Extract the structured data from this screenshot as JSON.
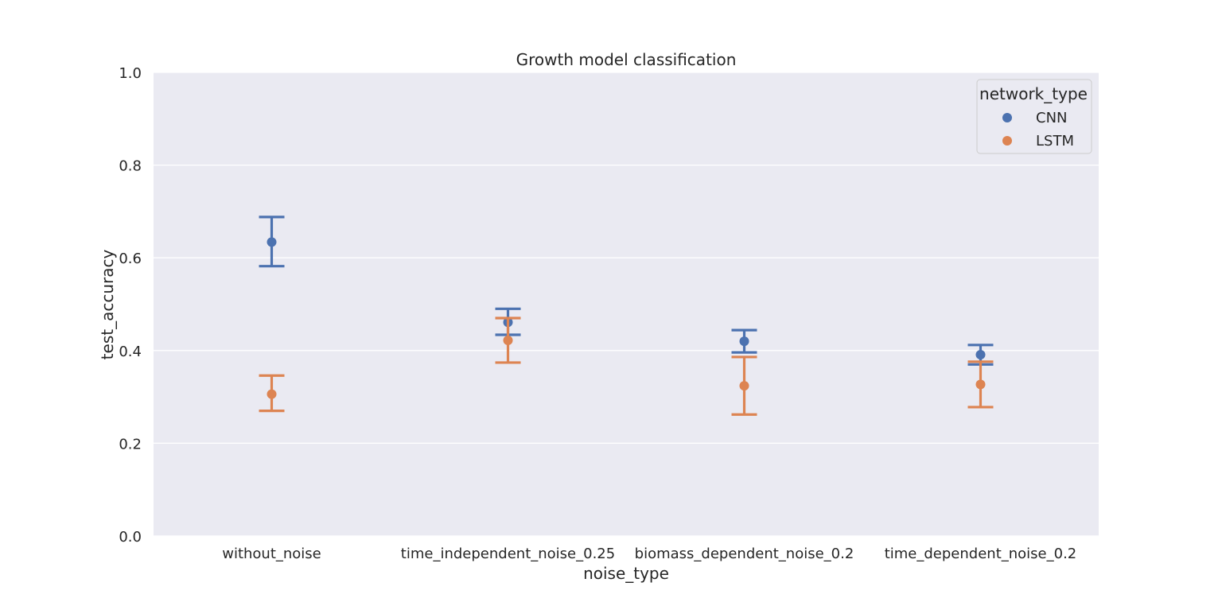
{
  "chart_data": {
    "type": "pointplot",
    "title": "Growth model classification",
    "xlabel": "noise_type",
    "ylabel": "test_accuracy",
    "ylim": [
      0.0,
      1.0
    ],
    "yticks": [
      "0.0",
      "0.2",
      "0.4",
      "0.6",
      "0.8",
      "1.0"
    ],
    "categories": [
      "without_noise",
      "time_independent_noise_0.25",
      "biomass_dependent_noise_0.2",
      "time_dependent_noise_0.2"
    ],
    "grid": true,
    "legend": {
      "title": "network_type",
      "placement": "top-right"
    },
    "series": [
      {
        "name": "CNN",
        "color": "#4c72b0",
        "values": [
          0.634,
          0.461,
          0.42,
          0.391
        ],
        "ci_low": [
          0.582,
          0.434,
          0.396,
          0.37
        ],
        "ci_high": [
          0.688,
          0.49,
          0.444,
          0.412
        ]
      },
      {
        "name": "LSTM",
        "color": "#dd8452",
        "values": [
          0.306,
          0.422,
          0.324,
          0.327
        ],
        "ci_low": [
          0.27,
          0.374,
          0.262,
          0.278
        ],
        "ci_high": [
          0.346,
          0.47,
          0.386,
          0.376
        ]
      }
    ]
  }
}
